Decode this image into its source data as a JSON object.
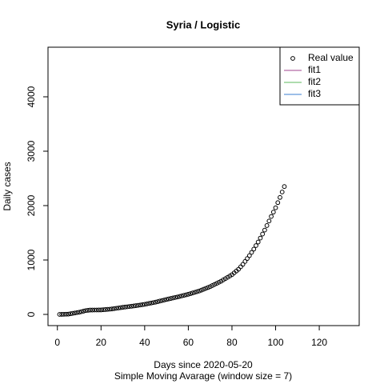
{
  "chart_data": {
    "type": "scatter",
    "title": "Syria / Logistic",
    "xlabel": "Days since 2020-05-20",
    "subtitle": "Simple Moving Avarage (window size = 7)",
    "ylabel": "Daily cases",
    "xlim": [
      -4.3,
      138.3
    ],
    "ylim": [
      -206,
      4912
    ],
    "xticks": [
      0,
      20,
      40,
      60,
      80,
      100,
      120
    ],
    "yticks": [
      0,
      1000,
      2000,
      3000,
      4000
    ],
    "series": [
      {
        "name": "Real value",
        "color": "#000000",
        "x": [
          1,
          2,
          3,
          4,
          5,
          6,
          7,
          8,
          9,
          10,
          11,
          12,
          13,
          14,
          15,
          16,
          17,
          18,
          19,
          20,
          21,
          22,
          23,
          24,
          25,
          26,
          27,
          28,
          29,
          30,
          31,
          32,
          33,
          34,
          35,
          36,
          37,
          38,
          39,
          40,
          41,
          42,
          43,
          44,
          45,
          46,
          47,
          48,
          49,
          50,
          51,
          52,
          53,
          54,
          55,
          56,
          57,
          58,
          59,
          60,
          61,
          62,
          63,
          64,
          65,
          66,
          67,
          68,
          69,
          70,
          71,
          72,
          73,
          74,
          75,
          76,
          77,
          78,
          79,
          80,
          81,
          82,
          83,
          84,
          85,
          86,
          87,
          88,
          89,
          90,
          91,
          92,
          93,
          94,
          95,
          96,
          97,
          98,
          99,
          100,
          101,
          102,
          103,
          104
        ],
        "values": [
          0,
          1,
          2,
          4,
          5,
          12,
          19,
          26,
          33,
          40,
          50,
          60,
          70,
          75,
          80,
          80,
          81,
          81,
          82,
          82,
          86,
          89,
          93,
          96,
          100,
          106,
          112,
          118,
          124,
          130,
          135,
          140,
          145,
          150,
          155,
          161,
          167,
          173,
          179,
          185,
          193,
          201,
          209,
          217,
          225,
          235,
          245,
          255,
          265,
          275,
          284,
          293,
          302,
          311,
          320,
          330,
          340,
          350,
          360,
          370,
          382,
          394,
          406,
          418,
          430,
          446,
          462,
          478,
          494,
          510,
          530,
          550,
          570,
          590,
          610,
          634,
          658,
          682,
          706,
          730,
          763,
          797,
          830,
          875,
          920,
          973,
          1027,
          1080,
          1140,
          1200,
          1265,
          1330,
          1403,
          1477,
          1550,
          1633,
          1717,
          1800,
          1880,
          1960,
          2055,
          2150,
          2250,
          2350
        ]
      }
    ],
    "fit_lines": [
      {
        "name": "fit1",
        "color": "#a0448f"
      },
      {
        "name": "fit2",
        "color": "#5cb85c"
      },
      {
        "name": "fit3",
        "color": "#3a7fd0"
      }
    ],
    "legend": "top-right"
  }
}
